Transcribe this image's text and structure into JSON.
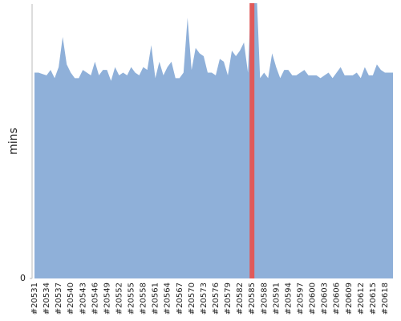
{
  "chart_data": {
    "type": "area",
    "y_label": "mins",
    "categories": [
      "#20531",
      null,
      null,
      "#20534",
      null,
      null,
      "#20537",
      null,
      null,
      "#20540",
      null,
      null,
      "#20543",
      null,
      null,
      "#20546",
      null,
      null,
      "#20549",
      null,
      null,
      "#20552",
      null,
      null,
      "#20555",
      null,
      null,
      "#20558",
      null,
      null,
      "#20561",
      null,
      null,
      "#20564",
      null,
      null,
      "#20567",
      null,
      null,
      "#20570",
      null,
      null,
      "#20573",
      null,
      null,
      "#20576",
      null,
      null,
      "#20579",
      null,
      null,
      "#20582",
      null,
      null,
      "#20585",
      null,
      null,
      "#20588",
      null,
      null,
      "#20591",
      null,
      null,
      "#20594",
      null,
      null,
      "#20597",
      null,
      null,
      "#20600",
      null,
      null,
      "#20603",
      null,
      null,
      "#20606",
      null,
      null,
      "#20609",
      null,
      null,
      "#20612",
      null,
      null,
      "#20615",
      null,
      null,
      "#20618",
      null,
      null
    ],
    "values": [
      75,
      75,
      74.5,
      74,
      76,
      73,
      77,
      88,
      78,
      75,
      73,
      73,
      76,
      75,
      74,
      79,
      74,
      76,
      76,
      72,
      77,
      74,
      75,
      74,
      77,
      75,
      74,
      77,
      76,
      85,
      73,
      79,
      74,
      77,
      79,
      73,
      73,
      75,
      95,
      76,
      84,
      82,
      81,
      75,
      75,
      74,
      80,
      79,
      74,
      83,
      81,
      83,
      86,
      75,
      110,
      110,
      73,
      75,
      73,
      82,
      77,
      73,
      76,
      76,
      74,
      74,
      75,
      76,
      74,
      74,
      74,
      73,
      74,
      75,
      73,
      75,
      77,
      74,
      74,
      74,
      75,
      73,
      77,
      74,
      74,
      78,
      76,
      75,
      75,
      75
    ],
    "color": "#8fb0d9",
    "ylim": [
      0,
      100
    ],
    "yticks": [
      0
    ],
    "highlight": {
      "index": 54,
      "color": "#e05a5a"
    }
  }
}
